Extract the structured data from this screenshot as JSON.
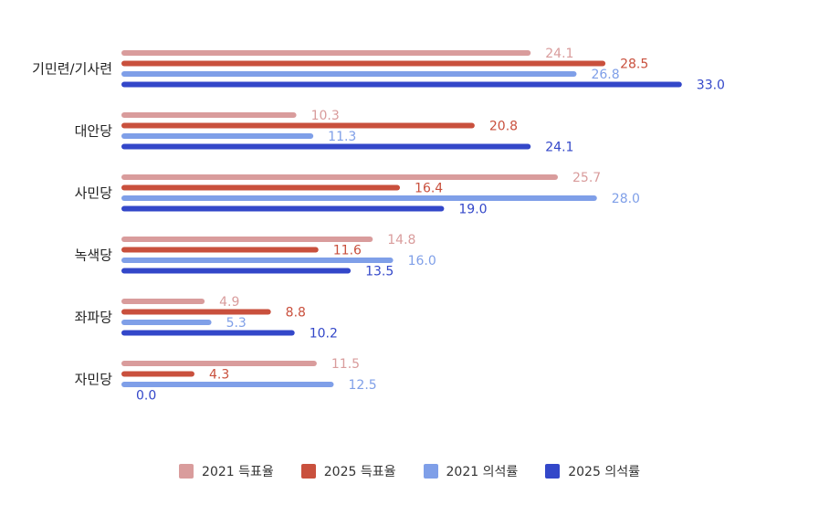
{
  "chart_data": {
    "type": "bar",
    "orientation": "horizontal",
    "categories": [
      "기민련/기사련",
      "대안당",
      "사민당",
      "녹색당",
      "좌파당",
      "자민당"
    ],
    "series": [
      {
        "name": "2021 득표율",
        "color": "#d99c9c",
        "values": [
          24.1,
          10.3,
          25.7,
          14.8,
          4.9,
          11.5
        ]
      },
      {
        "name": "2025 득표율",
        "color": "#c9503d",
        "values": [
          28.5,
          20.8,
          16.4,
          11.6,
          8.8,
          4.3
        ]
      },
      {
        "name": "2021 의석률",
        "color": "#7f9fe8",
        "values": [
          26.8,
          11.3,
          28.0,
          16.0,
          5.3,
          12.5
        ]
      },
      {
        "name": "2025 의석률",
        "color": "#3347c9",
        "values": [
          33.0,
          24.1,
          19.0,
          13.5,
          10.2,
          0.0
        ]
      }
    ],
    "xlim": [
      0,
      33
    ],
    "grid": false,
    "legend": "bottom-center",
    "title": "",
    "xlabel": "",
    "ylabel": ""
  }
}
